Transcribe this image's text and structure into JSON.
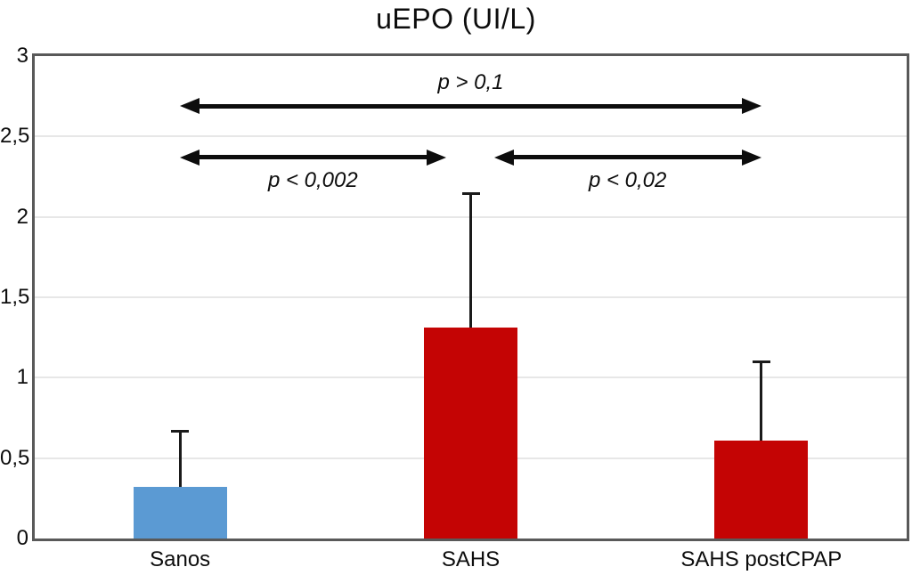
{
  "chart_data": {
    "type": "bar",
    "title": "uEPO (UI/L)",
    "categories": [
      "Sanos",
      "SAHS",
      "SAHS postCPAP"
    ],
    "values": [
      0.32,
      1.31,
      0.61
    ],
    "error_bar_tops": [
      0.67,
      2.15,
      1.1
    ],
    "bar_colors": [
      "#5b9ad3",
      "#c40404",
      "#c40404"
    ],
    "ylim": [
      0,
      3
    ],
    "yticks": [
      0,
      0.5,
      1,
      1.5,
      2,
      2.5,
      3
    ],
    "ytick_labels": [
      "0",
      "0,5",
      "1",
      "1,5",
      "2",
      "2,5",
      "3"
    ],
    "xlabel": "",
    "ylabel": "",
    "grid": true,
    "legend": "none",
    "annotations": [
      {
        "label": "p > 0,1",
        "from_bar": 0,
        "to_bar": 2,
        "y_value": 2.69,
        "label_side": "above",
        "inset_from": false,
        "inset_to": false
      },
      {
        "label": "p < 0,002",
        "from_bar": 0,
        "to_bar": 1,
        "y_value": 2.37,
        "label_side": "below",
        "inset_from": false,
        "inset_to": true
      },
      {
        "label": "p < 0,02",
        "from_bar": 1,
        "to_bar": 2,
        "y_value": 2.37,
        "label_side": "below",
        "inset_from": true,
        "inset_to": false
      }
    ],
    "colors": {
      "frame": "#595959",
      "gridline": "#e7e7e7",
      "error_bar": "#1a1a1a",
      "arrow": "#0d0d0d",
      "text": "#0d0d0d"
    }
  }
}
